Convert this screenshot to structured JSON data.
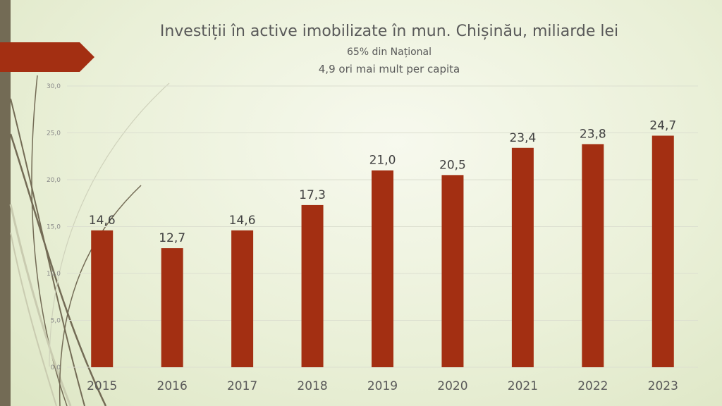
{
  "chart_data": {
    "type": "bar",
    "title": "Investiții în active imobilizate în mun. Chișinău, miliarde lei",
    "subtitle": [
      "65% din Național",
      "4,9 ori mai mult per capita"
    ],
    "categories": [
      "2015",
      "2016",
      "2017",
      "2018",
      "2019",
      "2020",
      "2021",
      "2022",
      "2023"
    ],
    "values": [
      14.6,
      12.7,
      14.6,
      17.3,
      21.0,
      20.5,
      23.4,
      23.8,
      24.7
    ],
    "data_labels": [
      "14,6",
      "12,7",
      "14,6",
      "17,3",
      "21,0",
      "20,5",
      "23,4",
      "23,8",
      "24,7"
    ],
    "yticks": [
      "0,0",
      "5,0",
      "10,0",
      "15,0",
      "20,0",
      "25,0",
      "30,0"
    ],
    "ylim": [
      0,
      30
    ],
    "xlabel": "",
    "ylabel": "",
    "grid": true,
    "bar_color": "#a32f12"
  }
}
